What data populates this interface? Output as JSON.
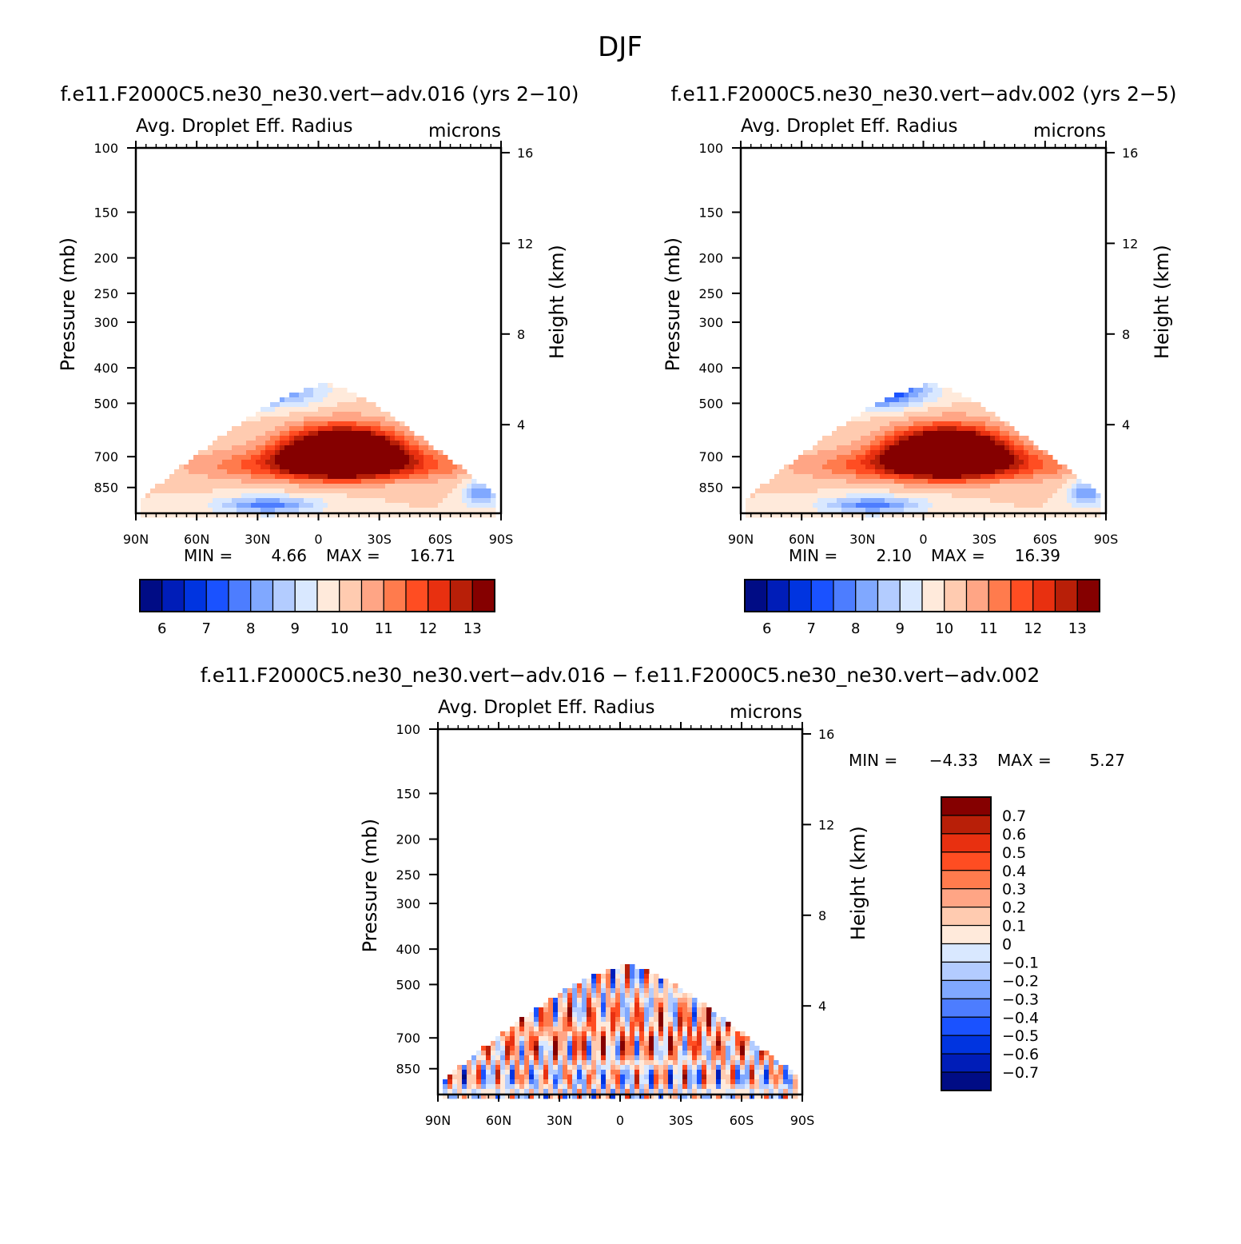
{
  "figure_title": "DJF",
  "chart_data": [
    {
      "type": "heatmap",
      "title": "f.e11.F2000C5.ne30_ne30.vert−adv.016 (yrs 2−10)",
      "variable": "Avg. Droplet Eff. Radius",
      "units": "microns",
      "xlabel": "",
      "ylabel": "Pressure (mb)",
      "ylabel_right": "Height (km)",
      "x_ticks": [
        "90N",
        "60N",
        "30N",
        "0",
        "30S",
        "60S",
        "90S"
      ],
      "xlim": [
        90,
        -90
      ],
      "y_ticks": [
        "100",
        "150",
        "200",
        "250",
        "300",
        "400",
        "500",
        "700",
        "850"
      ],
      "ylim": [
        100,
        1000
      ],
      "y_scale": "log",
      "y_ticks_right": [
        "16",
        "12",
        "8",
        "4"
      ],
      "min_label": "MIN =",
      "min_value": "4.66",
      "max_label": "MAX =",
      "max_value": "16.71",
      "colorbar": {
        "orientation": "horizontal",
        "labels": [
          "6",
          "7",
          "8",
          "9",
          "10",
          "11",
          "12",
          "13"
        ]
      }
    },
    {
      "type": "heatmap",
      "title": "f.e11.F2000C5.ne30_ne30.vert−adv.002 (yrs 2−5)",
      "variable": "Avg. Droplet Eff. Radius",
      "units": "microns",
      "xlabel": "",
      "ylabel": "Pressure (mb)",
      "ylabel_right": "Height (km)",
      "x_ticks": [
        "90N",
        "60N",
        "30N",
        "0",
        "30S",
        "60S",
        "90S"
      ],
      "xlim": [
        90,
        -90
      ],
      "y_ticks": [
        "100",
        "150",
        "200",
        "250",
        "300",
        "400",
        "500",
        "700",
        "850"
      ],
      "ylim": [
        100,
        1000
      ],
      "y_scale": "log",
      "y_ticks_right": [
        "16",
        "12",
        "8",
        "4"
      ],
      "min_label": "MIN =",
      "min_value": "2.10",
      "max_label": "MAX =",
      "max_value": "16.39",
      "colorbar": {
        "orientation": "horizontal",
        "labels": [
          "6",
          "7",
          "8",
          "9",
          "10",
          "11",
          "12",
          "13"
        ]
      }
    },
    {
      "type": "heatmap",
      "title": "f.e11.F2000C5.ne30_ne30.vert−adv.016 − f.e11.F2000C5.ne30_ne30.vert−adv.002",
      "variable": "Avg. Droplet Eff. Radius",
      "units": "microns",
      "xlabel": "",
      "ylabel": "Pressure (mb)",
      "ylabel_right": "Height (km)",
      "x_ticks": [
        "90N",
        "60N",
        "30N",
        "0",
        "30S",
        "60S",
        "90S"
      ],
      "xlim": [
        90,
        -90
      ],
      "y_ticks": [
        "100",
        "150",
        "200",
        "250",
        "300",
        "400",
        "500",
        "700",
        "850"
      ],
      "ylim": [
        100,
        1000
      ],
      "y_scale": "log",
      "y_ticks_right": [
        "16",
        "12",
        "8",
        "4"
      ],
      "min_label": "MIN =",
      "min_value": "−4.33",
      "max_label": "MAX =",
      "max_value": "5.27",
      "colorbar": {
        "orientation": "vertical",
        "labels": [
          "0.7",
          "0.6",
          "0.5",
          "0.4",
          "0.3",
          "0.2",
          "0.1",
          "0",
          "−0.1",
          "−0.2",
          "−0.3",
          "−0.4",
          "−0.5",
          "−0.6",
          "−0.7"
        ]
      }
    }
  ],
  "colors": {
    "abs_scale": [
      "#000c85",
      "#001db8",
      "#0034e0",
      "#1a52ff",
      "#4d7dff",
      "#80a8ff",
      "#b3ccff",
      "#d9e8ff",
      "#ffeadb",
      "#ffcbb0",
      "#ffa585",
      "#ff7b4d",
      "#ff4d22",
      "#e83010",
      "#b81f08",
      "#850000"
    ],
    "diff_scale": [
      "#850000",
      "#b81f08",
      "#e83010",
      "#ff4d22",
      "#ff7b4d",
      "#ffa585",
      "#ffcbb0",
      "#ffeadb",
      "#d9e8ff",
      "#b3ccff",
      "#80a8ff",
      "#4d7dff",
      "#1a52ff",
      "#0034e0",
      "#001db8",
      "#000c85"
    ]
  }
}
